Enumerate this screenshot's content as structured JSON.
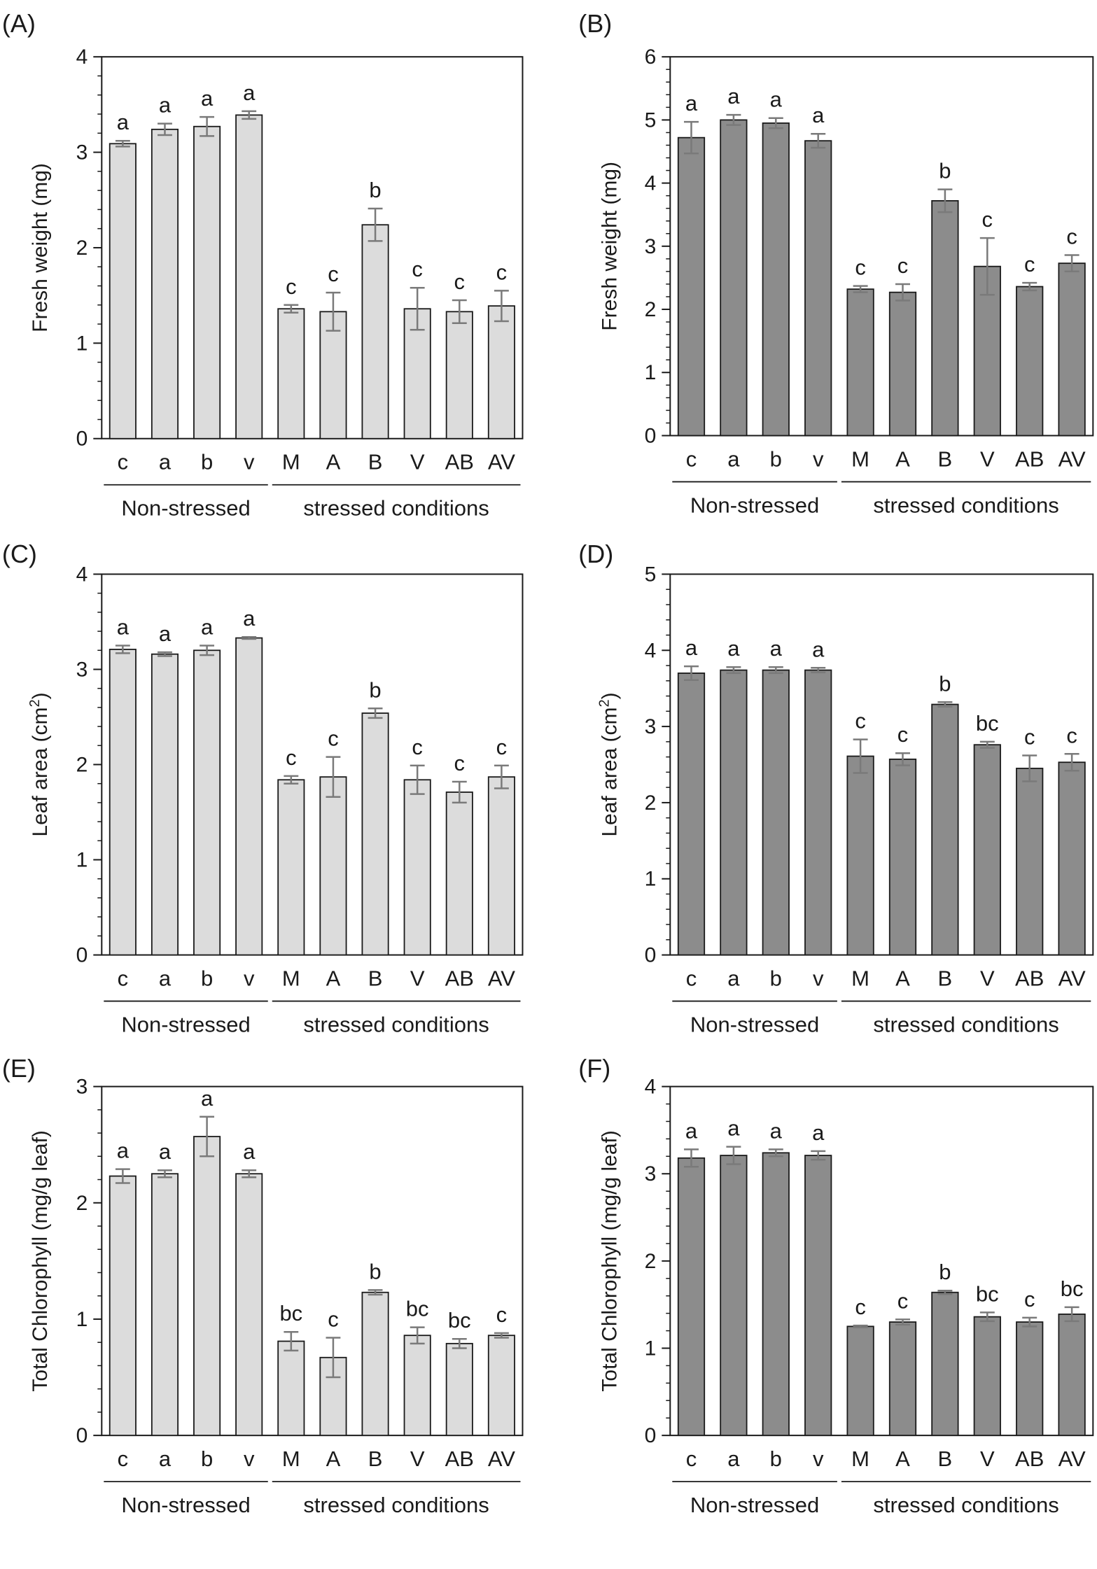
{
  "categories": [
    "c",
    "a",
    "b",
    "v",
    "M",
    "A",
    "B",
    "V",
    "AB",
    "AV"
  ],
  "groups": [
    {
      "label": "Non-stressed",
      "from": 0,
      "to": 3
    },
    {
      "label": "stressed conditions",
      "from": 4,
      "to": 9
    }
  ],
  "colors": {
    "light_bar": "#dcdcdc",
    "dark_bar": "#8c8c8c",
    "error_bar": "#7a7a7a",
    "axis": "#1a1a1a"
  },
  "chart_data": [
    {
      "type": "bar",
      "panel": "(A)",
      "ylabel": "Fresh weight (mg)",
      "ylim": [
        0,
        4
      ],
      "yticks": [
        0,
        1,
        2,
        3,
        4
      ],
      "bar_color": "light",
      "values": [
        3.09,
        3.24,
        3.27,
        3.39,
        1.36,
        1.33,
        2.24,
        1.36,
        1.33,
        1.39
      ],
      "errors": [
        0.03,
        0.06,
        0.1,
        0.04,
        0.04,
        0.2,
        0.17,
        0.22,
        0.12,
        0.16
      ],
      "sig": [
        "a",
        "a",
        "a",
        "a",
        "c",
        "c",
        "b",
        "c",
        "c",
        "c"
      ]
    },
    {
      "type": "bar",
      "panel": "(B)",
      "ylabel": "Fresh weight (mg)",
      "ylim": [
        0,
        6
      ],
      "yticks": [
        0,
        1,
        2,
        3,
        4,
        5,
        6
      ],
      "bar_color": "dark",
      "values": [
        4.72,
        5.0,
        4.95,
        4.67,
        2.32,
        2.27,
        3.72,
        2.68,
        2.36,
        2.73
      ],
      "errors": [
        0.25,
        0.08,
        0.08,
        0.11,
        0.05,
        0.13,
        0.18,
        0.45,
        0.06,
        0.13
      ],
      "sig": [
        "a",
        "a",
        "a",
        "a",
        "c",
        "c",
        "b",
        "c",
        "c",
        "c"
      ]
    },
    {
      "type": "bar",
      "panel": "(C)",
      "ylabel": "Leaf area (cm",
      "ylabel_sup": "2",
      "ylabel_end": ")",
      "ylim": [
        0,
        4
      ],
      "yticks": [
        0,
        1,
        2,
        3,
        4
      ],
      "bar_color": "light",
      "values": [
        3.21,
        3.16,
        3.2,
        3.33,
        1.84,
        1.87,
        2.54,
        1.84,
        1.71,
        1.87
      ],
      "errors": [
        0.04,
        0.02,
        0.05,
        0.01,
        0.04,
        0.21,
        0.05,
        0.15,
        0.11,
        0.12
      ],
      "sig": [
        "a",
        "a",
        "a",
        "a",
        "c",
        "c",
        "b",
        "c",
        "c",
        "c"
      ]
    },
    {
      "type": "bar",
      "panel": "(D)",
      "ylabel": "Leaf area (cm",
      "ylabel_sup": "2",
      "ylabel_end": ")",
      "ylim": [
        0,
        5
      ],
      "yticks": [
        0,
        1,
        2,
        3,
        4,
        5
      ],
      "bar_color": "dark",
      "values": [
        3.7,
        3.74,
        3.74,
        3.74,
        2.61,
        2.57,
        3.29,
        2.76,
        2.45,
        2.53
      ],
      "errors": [
        0.09,
        0.04,
        0.04,
        0.03,
        0.22,
        0.08,
        0.03,
        0.04,
        0.17,
        0.11
      ],
      "sig": [
        "a",
        "a",
        "a",
        "a",
        "c",
        "c",
        "b",
        "bc",
        "c",
        "c"
      ]
    },
    {
      "type": "bar",
      "panel": "(E)",
      "ylabel": "Total Chlorophyll (mg/g leaf)",
      "ylim": [
        0,
        3
      ],
      "yticks": [
        0,
        1,
        2,
        3
      ],
      "bar_color": "light",
      "values": [
        2.23,
        2.25,
        2.57,
        2.25,
        0.81,
        0.67,
        1.23,
        0.86,
        0.79,
        0.86
      ],
      "errors": [
        0.06,
        0.03,
        0.17,
        0.03,
        0.08,
        0.17,
        0.02,
        0.07,
        0.04,
        0.02
      ],
      "sig": [
        "a",
        "a",
        "a",
        "a",
        "bc",
        "c",
        "b",
        "bc",
        "bc",
        "c"
      ]
    },
    {
      "type": "bar",
      "panel": "(F)",
      "ylabel": "Total Chlorophyll (mg/g leaf)",
      "ylim": [
        0,
        4
      ],
      "yticks": [
        0,
        1,
        2,
        3,
        4
      ],
      "bar_color": "dark",
      "values": [
        3.18,
        3.21,
        3.24,
        3.21,
        1.25,
        1.3,
        1.64,
        1.36,
        1.3,
        1.39
      ],
      "errors": [
        0.1,
        0.1,
        0.04,
        0.05,
        0.01,
        0.03,
        0.02,
        0.05,
        0.05,
        0.08
      ],
      "sig": [
        "a",
        "a",
        "a",
        "a",
        "c",
        "c",
        "b",
        "bc",
        "c",
        "bc"
      ]
    }
  ]
}
